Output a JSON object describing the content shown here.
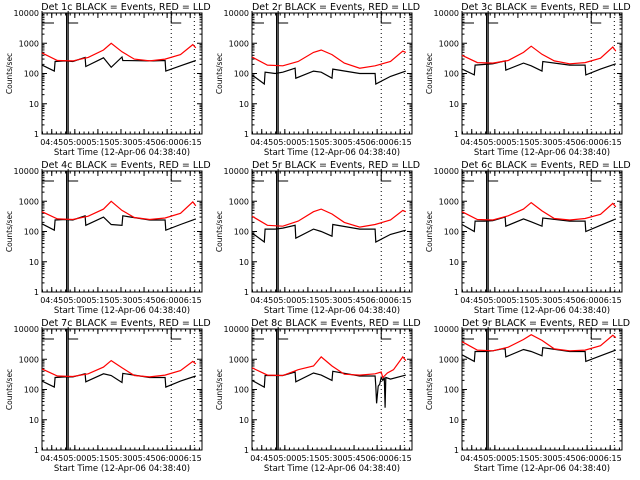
{
  "figure": {
    "background": "#ffffff",
    "black_color": "#000000",
    "red_color": "#ff0000"
  },
  "chart_data": [
    {
      "type": "line",
      "title": "Det 1c BLACK = Events, RED = LLD",
      "xlabel": "Start Time (12-Apr-06 04:38:40)",
      "ylabel": "Counts/sec",
      "yscale": "log",
      "ylim": [
        1,
        10000
      ],
      "yticks": [
        "1",
        "10",
        "100",
        "1000",
        "10000"
      ],
      "xticks": [
        "04:45",
        "05:00",
        "05:15",
        "05:30",
        "05:45",
        "06:00",
        "06:15"
      ],
      "xlim_minutes": [
        0,
        104
      ],
      "solid_vlines_min": [
        16,
        17
      ],
      "dotted_vlines_min": [
        84,
        99
      ],
      "series": [
        {
          "name": "Events",
          "color": "black",
          "x": [
            0,
            8,
            8.5,
            15,
            20,
            28,
            28.5,
            40,
            45,
            52,
            52.5,
            70,
            71,
            72,
            80,
            80.5,
            90,
            100
          ],
          "values": [
            190,
            120,
            250,
            260,
            250,
            340,
            170,
            330,
            160,
            350,
            270,
            260,
            260,
            260,
            270,
            120,
            180,
            270
          ]
        },
        {
          "name": "LLD",
          "color": "red",
          "x": [
            0,
            10,
            20,
            30,
            40,
            45,
            52,
            60,
            70,
            80,
            90,
            98,
            100
          ],
          "values": [
            480,
            270,
            260,
            340,
            600,
            1000,
            520,
            300,
            260,
            300,
            420,
            900,
            700
          ]
        }
      ]
    },
    {
      "type": "line",
      "title": "Det 2r BLACK = Events, RED = LLD",
      "xlabel": "Start Time (12-Apr-06 04:38:40)",
      "ylabel": "Counts/sec",
      "yscale": "log",
      "ylim": [
        1,
        10000
      ],
      "yticks": [
        "1",
        "10",
        "100",
        "1000",
        "10000"
      ],
      "xticks": [
        "04:45",
        "05:00",
        "05:15",
        "05:30",
        "05:45",
        "06:00",
        "06:15"
      ],
      "xlim_minutes": [
        0,
        104
      ],
      "solid_vlines_min": [
        16,
        17
      ],
      "dotted_vlines_min": [
        84,
        99
      ],
      "series": [
        {
          "name": "Events",
          "color": "black",
          "x": [
            0,
            8,
            8.5,
            15,
            20,
            28,
            28.5,
            40,
            45,
            52,
            52.5,
            70,
            71,
            72,
            80,
            80.5,
            90,
            100
          ],
          "values": [
            90,
            45,
            110,
            100,
            110,
            150,
            70,
            120,
            110,
            70,
            140,
            100,
            100,
            100,
            100,
            45,
            80,
            120
          ]
        },
        {
          "name": "LLD",
          "color": "red",
          "x": [
            0,
            10,
            20,
            30,
            40,
            45,
            52,
            60,
            70,
            80,
            90,
            98,
            100
          ],
          "values": [
            350,
            190,
            180,
            250,
            500,
            600,
            420,
            220,
            150,
            180,
            250,
            550,
            500
          ]
        }
      ]
    },
    {
      "type": "line",
      "title": "Det 3c BLACK = Events, RED = LLD",
      "xlabel": "Start Time (12-Apr-06 04:38:40)",
      "ylabel": "Counts/sec",
      "yscale": "log",
      "ylim": [
        1,
        10000
      ],
      "yticks": [
        "1",
        "10",
        "100",
        "1000",
        "10000"
      ],
      "xticks": [
        "04:45",
        "05:00",
        "05:15",
        "05:30",
        "05:45",
        "06:00",
        "06:15"
      ],
      "xlim_minutes": [
        0,
        104
      ],
      "solid_vlines_min": [
        16,
        17
      ],
      "dotted_vlines_min": [
        84,
        99
      ],
      "series": [
        {
          "name": "Events",
          "color": "black",
          "x": [
            0,
            8,
            8.5,
            15,
            20,
            28,
            28.5,
            40,
            45,
            52,
            52.5,
            70,
            71,
            72,
            80,
            80.5,
            90,
            100
          ],
          "values": [
            140,
            90,
            190,
            200,
            210,
            260,
            130,
            220,
            180,
            120,
            250,
            190,
            190,
            190,
            190,
            90,
            140,
            210
          ]
        },
        {
          "name": "LLD",
          "color": "red",
          "x": [
            0,
            10,
            20,
            30,
            40,
            45,
            52,
            60,
            70,
            80,
            90,
            98,
            100
          ],
          "values": [
            400,
            230,
            220,
            270,
            500,
            800,
            430,
            260,
            210,
            230,
            320,
            750,
            550
          ]
        }
      ]
    },
    {
      "type": "line",
      "title": "Det 4c BLACK = Events, RED = LLD",
      "xlabel": "Start Time (12-Apr-06 04:38:40)",
      "ylabel": "Counts/sec",
      "yscale": "log",
      "ylim": [
        1,
        10000
      ],
      "yticks": [
        "1",
        "10",
        "100",
        "1000",
        "10000"
      ],
      "xticks": [
        "04:45",
        "05:00",
        "05:15",
        "05:30",
        "05:45",
        "06:00",
        "06:15"
      ],
      "xlim_minutes": [
        0,
        104
      ],
      "solid_vlines_min": [
        16,
        17
      ],
      "dotted_vlines_min": [
        84,
        99
      ],
      "series": [
        {
          "name": "Events",
          "color": "black",
          "x": [
            0,
            8,
            8.5,
            15,
            20,
            28,
            28.5,
            40,
            45,
            52,
            52.5,
            70,
            71,
            72,
            80,
            80.5,
            90,
            100
          ],
          "values": [
            180,
            110,
            240,
            250,
            240,
            330,
            160,
            300,
            170,
            160,
            330,
            240,
            240,
            240,
            240,
            110,
            170,
            260
          ]
        },
        {
          "name": "LLD",
          "color": "red",
          "x": [
            0,
            10,
            20,
            30,
            40,
            45,
            52,
            60,
            70,
            80,
            90,
            98,
            100
          ],
          "values": [
            450,
            260,
            250,
            320,
            550,
            1000,
            500,
            290,
            250,
            280,
            400,
            950,
            700
          ]
        }
      ]
    },
    {
      "type": "line",
      "title": "Det 5r BLACK = Events, RED = LLD",
      "xlabel": "Start Time (12-Apr-06 04:38:40)",
      "ylabel": "Counts/sec",
      "yscale": "log",
      "ylim": [
        1,
        10000
      ],
      "yticks": [
        "1",
        "10",
        "100",
        "1000",
        "10000"
      ],
      "xticks": [
        "04:45",
        "05:00",
        "05:15",
        "05:30",
        "05:45",
        "06:00",
        "06:15"
      ],
      "xlim_minutes": [
        0,
        104
      ],
      "solid_vlines_min": [
        16,
        17
      ],
      "dotted_vlines_min": [
        84,
        99
      ],
      "series": [
        {
          "name": "Events",
          "color": "black",
          "x": [
            0,
            8,
            8.5,
            15,
            20,
            28,
            28.5,
            40,
            45,
            52,
            52.5,
            70,
            71,
            72,
            80,
            80.5,
            90,
            100
          ],
          "values": [
            90,
            45,
            120,
            120,
            130,
            160,
            60,
            120,
            100,
            70,
            170,
            120,
            120,
            120,
            120,
            45,
            80,
            110
          ]
        },
        {
          "name": "LLD",
          "color": "red",
          "x": [
            0,
            10,
            20,
            30,
            40,
            45,
            52,
            60,
            70,
            80,
            90,
            98,
            100
          ],
          "values": [
            320,
            160,
            150,
            220,
            450,
            550,
            380,
            200,
            140,
            170,
            240,
            500,
            450
          ]
        }
      ]
    },
    {
      "type": "line",
      "title": "Det 6c BLACK = Events, RED = LLD",
      "xlabel": "Start Time (12-Apr-06 04:38:40)",
      "ylabel": "Counts/sec",
      "yscale": "log",
      "ylim": [
        1,
        10000
      ],
      "yticks": [
        "1",
        "10",
        "100",
        "1000",
        "10000"
      ],
      "xticks": [
        "04:45",
        "05:00",
        "05:15",
        "05:30",
        "05:45",
        "06:00",
        "06:15"
      ],
      "xlim_minutes": [
        0,
        104
      ],
      "solid_vlines_min": [
        16,
        17
      ],
      "dotted_vlines_min": [
        84,
        99
      ],
      "series": [
        {
          "name": "Events",
          "color": "black",
          "x": [
            0,
            8,
            8.5,
            15,
            20,
            28,
            28.5,
            40,
            45,
            52,
            52.5,
            70,
            71,
            72,
            80,
            80.5,
            90,
            100
          ],
          "values": [
            170,
            100,
            220,
            220,
            230,
            300,
            150,
            260,
            210,
            150,
            280,
            220,
            220,
            220,
            220,
            100,
            160,
            260
          ]
        },
        {
          "name": "LLD",
          "color": "red",
          "x": [
            0,
            10,
            20,
            30,
            40,
            45,
            52,
            60,
            70,
            80,
            90,
            98,
            100
          ],
          "values": [
            450,
            250,
            240,
            330,
            550,
            900,
            480,
            270,
            240,
            270,
            370,
            850,
            650
          ]
        }
      ]
    },
    {
      "type": "line",
      "title": "Det 7c BLACK = Events, RED = LLD",
      "xlabel": "Start Time (12-Apr-06 04:38:40)",
      "ylabel": "Counts/sec",
      "yscale": "log",
      "ylim": [
        1,
        10000
      ],
      "yticks": [
        "1",
        "10",
        "100",
        "1000",
        "10000"
      ],
      "xticks": [
        "04:45",
        "05:00",
        "05:15",
        "05:30",
        "05:45",
        "06:00",
        "06:15"
      ],
      "xlim_minutes": [
        0,
        104
      ],
      "solid_vlines_min": [
        16,
        17
      ],
      "dotted_vlines_min": [
        84,
        99
      ],
      "series": [
        {
          "name": "Events",
          "color": "black",
          "x": [
            0,
            8,
            8.5,
            15,
            20,
            28,
            28.5,
            40,
            45,
            52,
            52.5,
            70,
            71,
            72,
            80,
            80.5,
            90,
            100
          ],
          "values": [
            190,
            120,
            250,
            260,
            260,
            330,
            180,
            330,
            290,
            170,
            340,
            250,
            250,
            250,
            250,
            120,
            190,
            280
          ]
        },
        {
          "name": "LLD",
          "color": "red",
          "x": [
            0,
            10,
            20,
            30,
            40,
            45,
            52,
            60,
            70,
            80,
            90,
            98,
            100
          ],
          "values": [
            480,
            280,
            270,
            330,
            550,
            900,
            520,
            290,
            260,
            300,
            420,
            850,
            700
          ]
        }
      ]
    },
    {
      "type": "line",
      "title": "Det 8c BLACK = Events, RED = LLD",
      "xlabel": "Start Time (12-Apr-06 04:38:40)",
      "ylabel": "Counts/sec",
      "yscale": "log",
      "ylim": [
        1,
        10000
      ],
      "yticks": [
        "1",
        "10",
        "100",
        "1000",
        "10000"
      ],
      "xticks": [
        "04:45",
        "05:00",
        "05:15",
        "05:30",
        "05:45",
        "06:00",
        "06:15"
      ],
      "xlim_minutes": [
        0,
        104
      ],
      "solid_vlines_min": [
        16,
        17
      ],
      "dotted_vlines_min": [
        84,
        99
      ],
      "series": [
        {
          "name": "Events",
          "color": "black",
          "x": [
            0,
            8,
            8.5,
            15,
            20,
            28,
            28.5,
            40,
            45,
            52,
            52.5,
            70,
            71,
            71.5,
            72,
            80,
            80.5,
            81,
            82,
            83,
            84,
            85,
            86,
            86.5,
            87,
            90,
            100
          ],
          "values": [
            200,
            120,
            290,
            290,
            290,
            380,
            180,
            350,
            300,
            200,
            400,
            280,
            280,
            280,
            280,
            280,
            130,
            35,
            130,
            150,
            250,
            200,
            250,
            25,
            250,
            220,
            300
          ]
        },
        {
          "name": "LLD",
          "color": "red",
          "x": [
            0,
            10,
            20,
            30,
            40,
            45,
            52,
            60,
            70,
            80,
            84,
            85,
            88,
            92,
            98,
            100
          ],
          "values": [
            520,
            300,
            290,
            450,
            600,
            1200,
            600,
            320,
            300,
            330,
            380,
            250,
            350,
            450,
            1200,
            900
          ]
        }
      ]
    },
    {
      "type": "line",
      "title": "Det 9r BLACK = Events, RED = LLD",
      "xlabel": "Start Time (12-Apr-06 04:38:40)",
      "ylabel": "Counts/sec",
      "yscale": "log",
      "ylim": [
        1,
        10000
      ],
      "yticks": [
        "1",
        "10",
        "100",
        "1000",
        "10000"
      ],
      "xticks": [
        "04:45",
        "05:00",
        "05:15",
        "05:30",
        "05:45",
        "06:00",
        "06:15"
      ],
      "xlim_minutes": [
        0,
        104
      ],
      "solid_vlines_min": [
        16,
        17
      ],
      "dotted_vlines_min": [
        84,
        99
      ],
      "series": [
        {
          "name": "Events",
          "color": "black",
          "x": [
            0,
            8,
            8.5,
            15,
            20,
            28,
            28.5,
            40,
            45,
            52,
            52.5,
            70,
            71,
            72,
            80,
            80.5,
            90,
            100
          ],
          "values": [
            1400,
            850,
            1800,
            1800,
            1900,
            2300,
            1200,
            2100,
            1800,
            1300,
            2400,
            1800,
            1800,
            1800,
            1800,
            850,
            1300,
            2000
          ]
        },
        {
          "name": "LLD",
          "color": "red",
          "x": [
            0,
            10,
            20,
            30,
            40,
            45,
            52,
            60,
            70,
            80,
            90,
            98,
            100
          ],
          "values": [
            3800,
            2000,
            1900,
            2500,
            4500,
            6500,
            4200,
            2200,
            1900,
            2000,
            2800,
            6200,
            5200
          ]
        }
      ]
    }
  ]
}
